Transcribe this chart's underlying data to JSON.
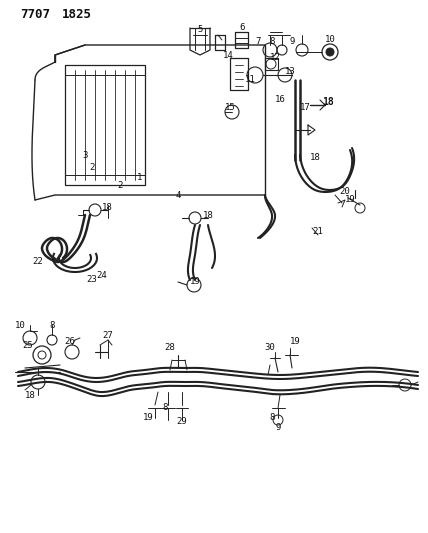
{
  "title1": "7707",
  "title2": "1825",
  "bg": "#ffffff",
  "lc": "#222222",
  "tc": "#111111",
  "fw": 4.28,
  "fh": 5.33,
  "dpi": 100
}
